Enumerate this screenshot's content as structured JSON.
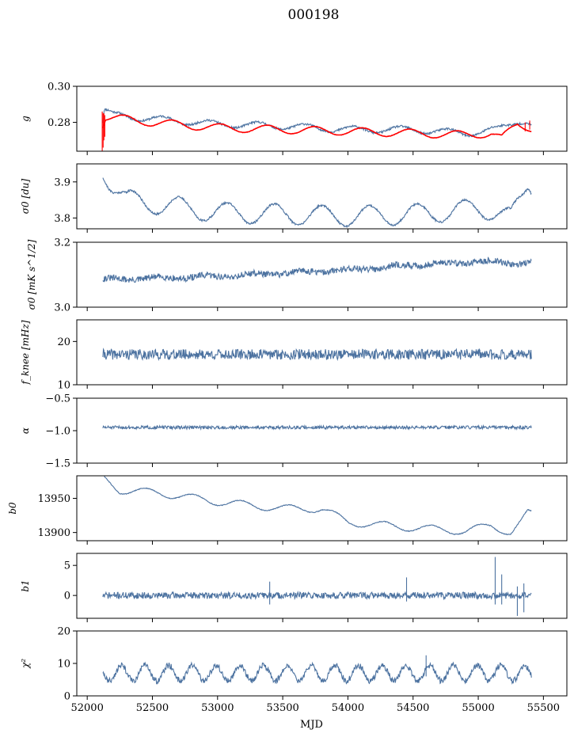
{
  "title": "000198",
  "colors": {
    "series": "#4c72a0",
    "model": "#ff0000",
    "frame": "#000000"
  },
  "chart_data": [
    {
      "type": "line",
      "id": "g",
      "ylabel": "g",
      "ylim": [
        0.264,
        0.3
      ],
      "yticks": [
        0.28,
        0.3
      ],
      "ytick_labels": [
        "0.28",
        "0.30"
      ],
      "xlim": [
        51920,
        55680
      ],
      "xticks": [
        52000,
        52500,
        53000,
        53500,
        54000,
        54500,
        55000,
        55500
      ],
      "show_xticklabels": false,
      "series": [
        {
          "style": "noisy_periodic",
          "color": "#4c72a0",
          "knots": [
            [
              52120,
              0.28
            ],
            [
              52130,
              0.287
            ],
            [
              52200,
              0.284
            ],
            [
              52500,
              0.282
            ],
            [
              53000,
              0.279
            ],
            [
              53500,
              0.278
            ],
            [
              54000,
              0.276
            ],
            [
              54500,
              0.276
            ],
            [
              54900,
              0.274
            ],
            [
              55150,
              0.276
            ],
            [
              55300,
              0.281
            ],
            [
              55350,
              0.281
            ],
            [
              55410,
              0.279
            ]
          ],
          "amp": 0.0018,
          "period": 365,
          "phase": 0.2,
          "noise": 0.0006,
          "seed": 11
        },
        {
          "style": "periodic",
          "color": "#ff0000",
          "knots": [
            [
              52120,
              0.279
            ],
            [
              52140,
              0.283
            ],
            [
              52500,
              0.28
            ],
            [
              53000,
              0.277
            ],
            [
              53500,
              0.276
            ],
            [
              54000,
              0.275
            ],
            [
              54500,
              0.274
            ],
            [
              54900,
              0.273
            ],
            [
              55100,
              0.274
            ],
            [
              55180,
              0.271
            ],
            [
              55300,
              0.279
            ],
            [
              55410,
              0.277
            ]
          ],
          "amp": 0.0022,
          "period": 365,
          "phase": 0.0,
          "noise": 0.0001,
          "seed": 12,
          "spikes": [
            [
              52115,
              0.264,
              0.286
            ],
            [
              52122,
              0.266,
              0.285
            ],
            [
              52128,
              0.27,
              0.285
            ],
            [
              52135,
              0.272,
              0.284
            ],
            [
              55360,
              0.275,
              0.28
            ],
            [
              55395,
              0.276,
              0.281
            ]
          ]
        }
      ]
    },
    {
      "type": "line",
      "id": "sigma0_du",
      "ylabel": "σ0 [du]",
      "ylim": [
        3.77,
        3.95
      ],
      "yticks": [
        3.8,
        3.9
      ],
      "ytick_labels": [
        "3.8",
        "3.9"
      ],
      "xlim": [
        51920,
        55680
      ],
      "xticks": [
        52000,
        52500,
        53000,
        53500,
        54000,
        54500,
        55000,
        55500
      ],
      "show_xticklabels": false,
      "series": [
        {
          "style": "periodic",
          "color": "#4c72a0",
          "knots": [
            [
              52120,
              3.935
            ],
            [
              52180,
              3.9
            ],
            [
              52300,
              3.85
            ],
            [
              52500,
              3.84
            ],
            [
              53000,
              3.815
            ],
            [
              53500,
              3.81
            ],
            [
              54000,
              3.805
            ],
            [
              54500,
              3.81
            ],
            [
              55000,
              3.825
            ],
            [
              55150,
              3.82
            ],
            [
              55250,
              3.8
            ],
            [
              55330,
              3.85
            ],
            [
              55380,
              3.895
            ],
            [
              55410,
              3.89
            ]
          ],
          "amp": 0.028,
          "period": 365,
          "phase": 0.85,
          "noise": 0.003,
          "seed": 21
        }
      ]
    },
    {
      "type": "line",
      "id": "sigma0_mk",
      "ylabel": "σ0 [mK s^1/2]",
      "ylim": [
        3.0,
        3.2
      ],
      "yticks": [
        3.0,
        3.2
      ],
      "ytick_labels": [
        "3.0",
        "3.2"
      ],
      "xlim": [
        51920,
        55680
      ],
      "xticks": [
        52000,
        52500,
        53000,
        53500,
        54000,
        54500,
        55000,
        55500
      ],
      "show_xticklabels": false,
      "series": [
        {
          "style": "noisy",
          "color": "#4c72a0",
          "knots": [
            [
              52120,
              3.085
            ],
            [
              53000,
              3.095
            ],
            [
              53500,
              3.105
            ],
            [
              54000,
              3.115
            ],
            [
              54500,
              3.13
            ],
            [
              55000,
              3.14
            ],
            [
              55410,
              3.135
            ]
          ],
          "amp": 0.004,
          "period": 365,
          "phase": 0.3,
          "noise": 0.01,
          "seed": 31
        }
      ]
    },
    {
      "type": "line",
      "id": "fknee",
      "ylabel": "f_knee [mHz]",
      "ylim": [
        10,
        25
      ],
      "yticks": [
        10,
        20
      ],
      "ytick_labels": [
        "10",
        "20"
      ],
      "xlim": [
        51920,
        55680
      ],
      "xticks": [
        52000,
        52500,
        53000,
        53500,
        54000,
        54500,
        55000,
        55500
      ],
      "show_xticklabels": false,
      "series": [
        {
          "style": "noisy",
          "color": "#4c72a0",
          "knots": [
            [
              52120,
              17.0
            ],
            [
              55410,
              17.0
            ]
          ],
          "amp": 0.0,
          "period": 365,
          "phase": 0,
          "noise": 1.2,
          "seed": 41
        }
      ]
    },
    {
      "type": "line",
      "id": "alpha",
      "ylabel": "α",
      "ylim": [
        -1.5,
        -0.5
      ],
      "yticks": [
        -1.5,
        -1.0,
        -0.5
      ],
      "ytick_labels": [
        "−1.5",
        "−1.0",
        "−0.5"
      ],
      "xlim": [
        51920,
        55680
      ],
      "xticks": [
        52000,
        52500,
        53000,
        53500,
        54000,
        54500,
        55000,
        55500
      ],
      "show_xticklabels": false,
      "series": [
        {
          "style": "noisy",
          "color": "#4c72a0",
          "knots": [
            [
              52120,
              -0.95
            ],
            [
              55410,
              -0.95
            ]
          ],
          "amp": 0.0,
          "period": 365,
          "phase": 0,
          "noise": 0.025,
          "seed": 51
        }
      ]
    },
    {
      "type": "line",
      "id": "b0",
      "ylabel": "b0",
      "ylim": [
        13888,
        13983
      ],
      "yticks": [
        13900,
        13950
      ],
      "ytick_labels": [
        "13900",
        "13950"
      ],
      "xlim": [
        51920,
        55680
      ],
      "xticks": [
        52000,
        52500,
        53000,
        53500,
        54000,
        54500,
        55000,
        55500
      ],
      "show_xticklabels": false,
      "series": [
        {
          "style": "periodic",
          "color": "#4c72a0",
          "knots": [
            [
              52120,
              13980
            ],
            [
              52250,
              13962
            ],
            [
              52550,
              13958
            ],
            [
              53000,
              13945
            ],
            [
              53500,
              13935
            ],
            [
              53800,
              13935
            ],
            [
              54000,
              13915
            ],
            [
              54500,
              13907
            ],
            [
              54900,
              13902
            ],
            [
              55100,
              13910
            ],
            [
              55250,
              13900
            ],
            [
              55330,
              13915
            ],
            [
              55380,
              13928
            ],
            [
              55410,
              13927
            ]
          ],
          "amp": 5.5,
          "period": 365,
          "phase": 0.55,
          "noise": 0.6,
          "seed": 61
        }
      ]
    },
    {
      "type": "line",
      "id": "b1",
      "ylabel": "b1",
      "ylim": [
        -3.8,
        7.0
      ],
      "yticks": [
        0,
        5
      ],
      "ytick_labels": [
        "0",
        "5"
      ],
      "xlim": [
        51920,
        55680
      ],
      "xticks": [
        52000,
        52500,
        53000,
        53500,
        54000,
        54500,
        55000,
        55500
      ],
      "show_xticklabels": false,
      "series": [
        {
          "style": "noisy",
          "color": "#4c72a0",
          "knots": [
            [
              52120,
              0.0
            ],
            [
              55410,
              0.0
            ]
          ],
          "amp": 0.0,
          "period": 365,
          "phase": 0,
          "noise": 0.55,
          "seed": 71,
          "spikes": [
            [
              53400,
              -1.5,
              2.3
            ],
            [
              54450,
              -1.0,
              3.0
            ],
            [
              55130,
              -1.5,
              6.4
            ],
            [
              55180,
              -1.5,
              3.5
            ],
            [
              55300,
              -3.4,
              1.5
            ],
            [
              55350,
              -2.8,
              2.0
            ]
          ]
        }
      ]
    },
    {
      "type": "line",
      "id": "chi2",
      "ylabel": "χ²",
      "ylim": [
        0,
        20
      ],
      "yticks": [
        0,
        10,
        20
      ],
      "ytick_labels": [
        "0",
        "10",
        "20"
      ],
      "xlabel": "MJD",
      "xlim": [
        51920,
        55680
      ],
      "xticks": [
        52000,
        52500,
        53000,
        53500,
        54000,
        54500,
        55000,
        55500
      ],
      "xtick_labels": [
        "52000",
        "52500",
        "53000",
        "53500",
        "54000",
        "54500",
        "55000",
        "55500"
      ],
      "show_xticklabels": true,
      "series": [
        {
          "style": "periodic",
          "color": "#4c72a0",
          "knots": [
            [
              52120,
              7.0
            ],
            [
              55410,
              7.0
            ]
          ],
          "amp": 2.4,
          "period": 182,
          "phase": 0.1,
          "noise": 0.9,
          "seed": 81,
          "spikes": [
            [
              54600,
              6.0,
              12.5
            ]
          ]
        }
      ]
    }
  ]
}
